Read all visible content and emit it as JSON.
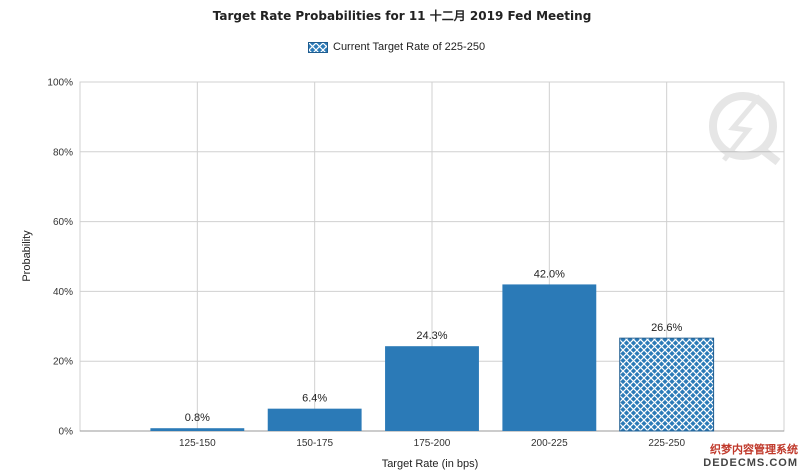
{
  "chart_data": {
    "type": "bar",
    "title": "Target Rate Probabilities for 11 十二月 2019 Fed Meeting",
    "xlabel": "Target Rate (in bps)",
    "ylabel": "Probability",
    "categories": [
      "125-150",
      "150-175",
      "175-200",
      "200-225",
      "225-250"
    ],
    "values": [
      0.8,
      6.4,
      24.3,
      42.0,
      26.6
    ],
    "value_labels": [
      "0.8%",
      "6.4%",
      "24.3%",
      "42.0%",
      "26.6%"
    ],
    "highlighted_category": "225-250",
    "ylim": [
      0,
      100
    ],
    "yticks": [
      0,
      20,
      40,
      60,
      80,
      100
    ],
    "ytick_labels": [
      "0%",
      "20%",
      "40%",
      "60%",
      "80%",
      "100%"
    ],
    "grid": true,
    "legend": {
      "position": "top-center",
      "label": "Current Target Rate of 225-250"
    },
    "colors": {
      "bar": "#2b7ab7",
      "hatch": "#ffffff",
      "grid": "#d0d0d0",
      "axis": "#999999"
    }
  },
  "watermark": {
    "line1": "织梦内容管理系统",
    "line2": "DEDECMS.COM"
  }
}
